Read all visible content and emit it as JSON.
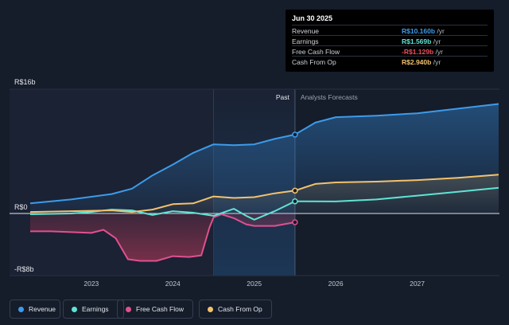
{
  "tooltip": {
    "date": "Jun 30 2025",
    "rows": [
      {
        "label": "Revenue",
        "value": "R$10.160b",
        "unit": " /yr",
        "color": "#3d9be9"
      },
      {
        "label": "Earnings",
        "value": "R$1.569b",
        "unit": " /yr",
        "color": "#5fe3d3"
      },
      {
        "label": "Free Cash Flow",
        "value": "-R$1.129b",
        "unit": " /yr",
        "color": "#ef4c5c"
      },
      {
        "label": "Cash From Op",
        "value": "R$2.940b",
        "unit": " /yr",
        "color": "#f3c26d"
      }
    ]
  },
  "legend": [
    {
      "label": "Revenue",
      "color": "#3d9be9"
    },
    {
      "label": "Earnings",
      "color": "#5fe3d3"
    },
    {
      "label": "Free Cash Flow",
      "color": "#e0508f"
    },
    {
      "label": "Cash From Op",
      "color": "#f3c26d"
    }
  ],
  "chart_data": {
    "type": "line",
    "y_ticks": [
      {
        "value": 16,
        "label": "R$16b"
      },
      {
        "value": 0,
        "label": "R$0"
      },
      {
        "value": -8,
        "label": "-R$8b"
      }
    ],
    "ylim": [
      -8,
      16
    ],
    "xlim": [
      2022.25,
      2028.0
    ],
    "x_ticks": [
      {
        "value": 2023,
        "label": "2023"
      },
      {
        "value": 2024,
        "label": "2024"
      },
      {
        "value": 2025,
        "label": "2025"
      },
      {
        "value": 2026,
        "label": "2026"
      },
      {
        "value": 2027,
        "label": "2027"
      }
    ],
    "past_label": "Past",
    "forecast_label": "Analysts Forecasts",
    "past_start": 2024.5,
    "divider": 2025.5,
    "series": [
      {
        "name": "Revenue",
        "color": "#3d9be9",
        "fill": true,
        "points": [
          [
            2022.25,
            1.3
          ],
          [
            2022.75,
            1.8
          ],
          [
            2023.25,
            2.5
          ],
          [
            2023.5,
            3.2
          ],
          [
            2023.75,
            4.9
          ],
          [
            2024.0,
            6.3
          ],
          [
            2024.25,
            7.8
          ],
          [
            2024.5,
            8.9
          ],
          [
            2024.75,
            8.8
          ],
          [
            2025.0,
            8.9
          ],
          [
            2025.25,
            9.6
          ],
          [
            2025.5,
            10.16
          ],
          [
            2025.75,
            11.7
          ],
          [
            2026.0,
            12.4
          ],
          [
            2026.5,
            12.6
          ],
          [
            2027.0,
            12.9
          ],
          [
            2027.5,
            13.5
          ],
          [
            2028.0,
            14.1
          ]
        ]
      },
      {
        "name": "Cash From Op",
        "color": "#f3c26d",
        "fill": true,
        "points": [
          [
            2022.25,
            0.2
          ],
          [
            2022.75,
            0.3
          ],
          [
            2023.25,
            0.4
          ],
          [
            2023.5,
            0.2
          ],
          [
            2023.75,
            0.5
          ],
          [
            2024.0,
            1.2
          ],
          [
            2024.25,
            1.3
          ],
          [
            2024.5,
            2.2
          ],
          [
            2024.75,
            2.0
          ],
          [
            2025.0,
            2.1
          ],
          [
            2025.25,
            2.6
          ],
          [
            2025.5,
            2.94
          ],
          [
            2025.75,
            3.8
          ],
          [
            2026.0,
            4.0
          ],
          [
            2026.5,
            4.1
          ],
          [
            2027.0,
            4.3
          ],
          [
            2027.5,
            4.6
          ],
          [
            2028.0,
            5.0
          ]
        ]
      },
      {
        "name": "Earnings",
        "color": "#5fe3d3",
        "fill": false,
        "points": [
          [
            2022.25,
            -0.1
          ],
          [
            2022.75,
            0.0
          ],
          [
            2023.0,
            0.2
          ],
          [
            2023.25,
            0.5
          ],
          [
            2023.5,
            0.4
          ],
          [
            2023.75,
            -0.2
          ],
          [
            2024.0,
            0.3
          ],
          [
            2024.25,
            0.1
          ],
          [
            2024.5,
            -0.3
          ],
          [
            2024.75,
            0.6
          ],
          [
            2024.9,
            -0.3
          ],
          [
            2025.0,
            -0.8
          ],
          [
            2025.25,
            0.3
          ],
          [
            2025.5,
            1.569
          ],
          [
            2026.0,
            1.55
          ],
          [
            2026.5,
            1.8
          ],
          [
            2027.0,
            2.3
          ],
          [
            2027.5,
            2.8
          ],
          [
            2028.0,
            3.3
          ]
        ]
      },
      {
        "name": "Free Cash Flow",
        "color": "#e0508f",
        "fill": true,
        "points": [
          [
            2022.25,
            -2.3
          ],
          [
            2022.5,
            -2.3
          ],
          [
            2022.75,
            -2.4
          ],
          [
            2023.0,
            -2.5
          ],
          [
            2023.15,
            -2.1
          ],
          [
            2023.3,
            -3.2
          ],
          [
            2023.45,
            -5.9
          ],
          [
            2023.6,
            -6.1
          ],
          [
            2023.8,
            -6.1
          ],
          [
            2024.0,
            -5.5
          ],
          [
            2024.2,
            -5.6
          ],
          [
            2024.35,
            -5.4
          ],
          [
            2024.45,
            -1.8
          ],
          [
            2024.5,
            -0.5
          ],
          [
            2024.6,
            -0.1
          ],
          [
            2024.75,
            -0.6
          ],
          [
            2024.9,
            -1.4
          ],
          [
            2025.0,
            -1.6
          ],
          [
            2025.25,
            -1.6
          ],
          [
            2025.5,
            -1.129
          ]
        ]
      }
    ]
  }
}
